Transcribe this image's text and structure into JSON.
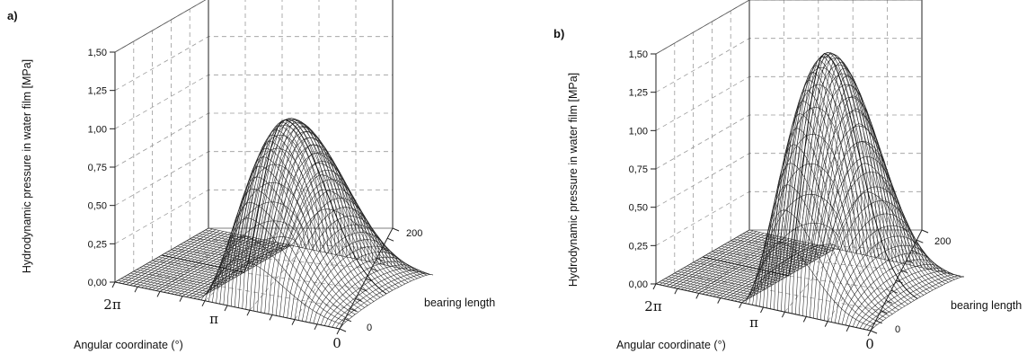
{
  "chart_data": [
    {
      "type": "surface",
      "panel_label": "a)",
      "zlabel": "Hydrodynamic pressure in water film [MPa]",
      "xlabel": "Angular coordinate (°)",
      "ylabel": "bearing length",
      "z_ticks": [
        "0,00",
        "0,25",
        "0,50",
        "0,75",
        "1,00",
        "1,25",
        "1,50"
      ],
      "x_ticks": [
        "2π",
        "π",
        "0"
      ],
      "y_ticks": [
        "0",
        "200"
      ],
      "zlim": [
        0,
        1.5
      ],
      "peak_pressure": 1.05,
      "peak_angle_fraction": 0.55
    },
    {
      "type": "surface",
      "panel_label": "b)",
      "zlabel": "Hydrodynamic pressure in water film [MPa]",
      "xlabel": "Angular coordinate (°)",
      "ylabel": "bearing length",
      "z_ticks": [
        "0,00",
        "0,25",
        "0,50",
        "0,75",
        "1,00",
        "1,25",
        "1,50"
      ],
      "x_ticks": [
        "2π",
        "π",
        "0"
      ],
      "y_ticks": [
        "0",
        "200"
      ],
      "zlim": [
        0,
        1.5
      ],
      "peak_pressure": 1.5,
      "peak_angle_fraction": 0.57
    }
  ]
}
